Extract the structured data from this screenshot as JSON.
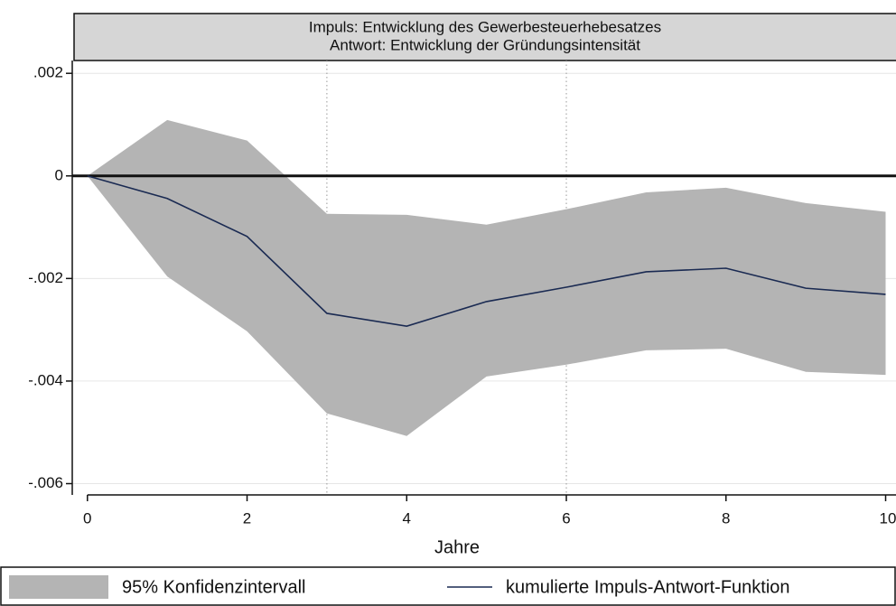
{
  "chart_data": {
    "type": "line",
    "title": [
      "Impuls: Entwicklung des Gewerbesteuerhebesatzes",
      "Antwort: Entwicklung der Gründungsintensität"
    ],
    "x_label": "Jahre",
    "x": [
      0,
      1,
      2,
      3,
      4,
      5,
      6,
      7,
      8,
      9,
      10
    ],
    "series": [
      {
        "name": "95% Konfidenzintervall",
        "color": "#b4b4b4",
        "upper": [
          0,
          0.00109,
          0.00069,
          -0.00074,
          -0.00076,
          -0.00095,
          -0.00065,
          -0.00032,
          -0.00023,
          -0.00053,
          -0.0007
        ],
        "lower": [
          0,
          -0.00196,
          -0.00303,
          -0.00463,
          -0.00507,
          -0.00391,
          -0.00368,
          -0.0034,
          -0.00337,
          -0.00382,
          -0.00388
        ]
      },
      {
        "name": "kumulierte Impuls-Antwort-Funktion",
        "color": "#1a2a52",
        "values": [
          0,
          -0.00044,
          -0.00118,
          -0.00268,
          -0.00293,
          -0.00245,
          -0.00217,
          -0.00187,
          -0.0018,
          -0.00219,
          -0.00231
        ]
      }
    ],
    "xlim": [
      -0.19,
      10.13
    ],
    "xticks": [
      0,
      2,
      4,
      6,
      8,
      10
    ],
    "ylim": [
      -0.00622,
      0.00225
    ],
    "yticks": [
      {
        "value": 0.002,
        "label": ".002"
      },
      0,
      {
        "value": -0.002,
        "label": "-.002"
      },
      {
        "value": -0.004,
        "label": "-.004"
      },
      {
        "value": -0.006,
        "label": "-.006"
      }
    ],
    "xlines": [
      3,
      6
    ],
    "yline": 0,
    "grid": true,
    "legend": "bottom"
  }
}
